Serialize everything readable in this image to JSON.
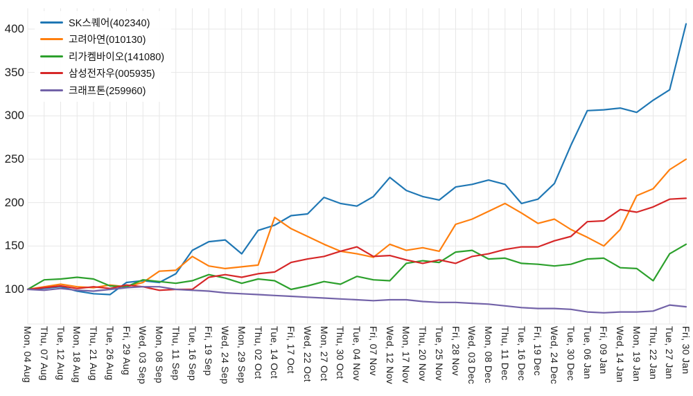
{
  "chart_data": {
    "type": "line",
    "title": "",
    "xlabel": "",
    "ylabel": "",
    "baseline": 100,
    "grid": true,
    "legend_position": "top-left",
    "axis_text_color": "#1c1c1c",
    "grid_color": "#e7e7e7",
    "yticks": [
      100,
      150,
      200,
      250,
      300,
      350,
      400
    ],
    "x_tick_labels": [
      "Mon, 04 Aug",
      "Thu, 07 Aug",
      "Tue, 12 Aug",
      "Mon, 18 Aug",
      "Thu, 21 Aug",
      "Tue, 26 Aug",
      "Fri, 29 Aug",
      "Wed, 03 Sep",
      "Mon, 08 Sep",
      "Thu, 11 Sep",
      "Tue, 16 Sep",
      "Fri, 19 Sep",
      "Wed, 24 Sep",
      "Mon, 29 Sep",
      "Thu, 02 Oct",
      "Tue, 14 Oct",
      "Fri, 17 Oct",
      "Wed, 22 Oct",
      "Mon, 27 Oct",
      "Thu, 30 Oct",
      "Tue, 04 Nov",
      "Fri, 07 Nov",
      "Wed, 12 Nov",
      "Mon, 17 Nov",
      "Thu, 20 Nov",
      "Tue, 25 Nov",
      "Fri, 28 Nov",
      "Wed, 03 Dec",
      "Mon, 08 Dec",
      "Thu, 11 Dec",
      "Tue, 16 Dec",
      "Fri, 19 Dec",
      "Wed, 24 Dec",
      "Tue, 30 Dec",
      "Tue, 06 Jan",
      "Fri, 09 Jan",
      "Wed, 14 Jan",
      "Mon, 19 Jan",
      "Thu, 22 Jan",
      "Tue, 27 Jan",
      "Fri, 30 Jan"
    ],
    "series": [
      {
        "name": "SK스퀘어(402340)",
        "color": "#1f77b4",
        "values": [
          100,
          101,
          103,
          98,
          95,
          94,
          108,
          110,
          108,
          118,
          145,
          155,
          157,
          141,
          168,
          174,
          185,
          187,
          206,
          199,
          196,
          207,
          229,
          214,
          207,
          203,
          218,
          221,
          226,
          221,
          199,
          204,
          222,
          266,
          306,
          307,
          309,
          304,
          318,
          330,
          406
        ]
      },
      {
        "name": "고려아연(010130)",
        "color": "#ff7f0e",
        "values": [
          100,
          103,
          106,
          103,
          102,
          105,
          103,
          108,
          121,
          122,
          138,
          127,
          124,
          126,
          128,
          183,
          170,
          161,
          152,
          144,
          141,
          137,
          152,
          145,
          148,
          144,
          175,
          181,
          190,
          199,
          188,
          176,
          181,
          169,
          160,
          150,
          169,
          208,
          216,
          238,
          250
        ]
      },
      {
        "name": "리가켐바이오(141080)",
        "color": "#2ca02c",
        "values": [
          100,
          111,
          112,
          114,
          112,
          104,
          103,
          111,
          109,
          107,
          110,
          117,
          113,
          107,
          112,
          110,
          100,
          104,
          109,
          106,
          115,
          111,
          110,
          130,
          133,
          131,
          143,
          145,
          135,
          136,
          130,
          129,
          127,
          129,
          135,
          136,
          125,
          124,
          110,
          141,
          152
        ]
      },
      {
        "name": "삼성전자우(005935)",
        "color": "#d62728",
        "values": [
          100,
          102,
          104,
          101,
          103,
          101,
          105,
          103,
          99,
          100,
          100,
          114,
          117,
          114,
          118,
          120,
          131,
          135,
          138,
          144,
          149,
          138,
          139,
          134,
          130,
          134,
          130,
          138,
          141,
          146,
          149,
          149,
          156,
          161,
          178,
          179,
          192,
          189,
          195,
          204,
          205
        ]
      },
      {
        "name": "크래프톤(259960)",
        "color": "#7262a8",
        "values": [
          100,
          99,
          101,
          99,
          98,
          100,
          102,
          103,
          103,
          100,
          99,
          98,
          96,
          95,
          94,
          93,
          92,
          91,
          90,
          89,
          88,
          87,
          88,
          88,
          86,
          85,
          85,
          84,
          83,
          81,
          79,
          78,
          78,
          77,
          74,
          73,
          74,
          74,
          75,
          82,
          80
        ]
      }
    ]
  }
}
